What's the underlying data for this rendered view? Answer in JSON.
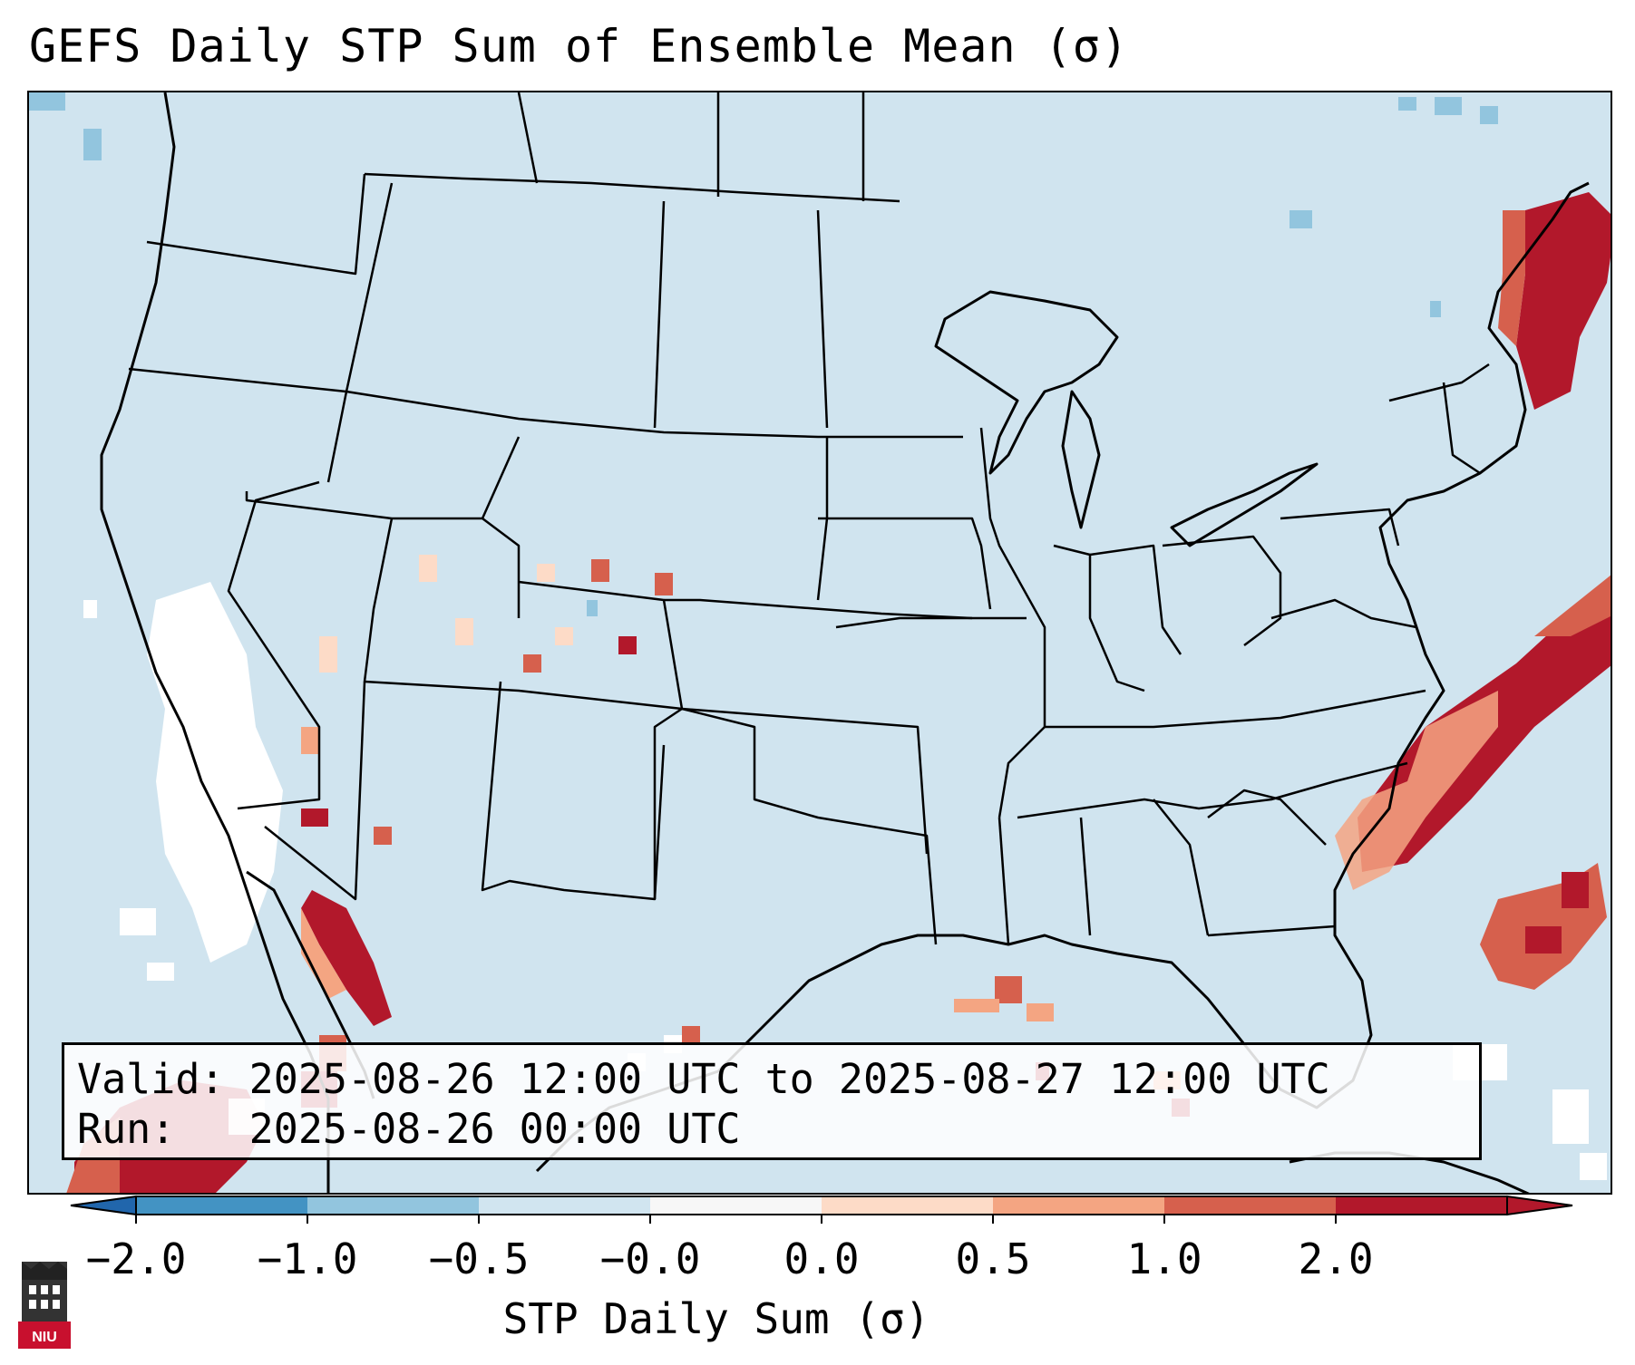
{
  "title": "GEFS Daily STP Sum of Ensemble Mean (σ)",
  "info": {
    "valid_label": "Valid:",
    "valid_value": "2025-08-26 12:00 UTC to 2025-08-27 12:00 UTC",
    "run_label": "Run:",
    "run_value": "2025-08-26 00:00 UTC"
  },
  "colorbar": {
    "label": "STP Daily Sum (σ)",
    "ticks": [
      "−2.0",
      "−1.0",
      "−0.5",
      "−0.0",
      "0.0",
      "0.5",
      "1.0",
      "2.0"
    ],
    "colors": [
      "#4393c3",
      "#92c5de",
      "#d1e5f0",
      "#f7f7f7",
      "#fddbc7",
      "#f4a582",
      "#d6604d",
      "#b2182b"
    ],
    "extend_low_color": "#2166ac",
    "extend_high_color": "#b2182b"
  },
  "map": {
    "ocean_color": "#d0e5ef",
    "border_color": "#000000",
    "projection": "Lambert Conformal, CONUS"
  },
  "logo": {
    "text": "NIU"
  }
}
